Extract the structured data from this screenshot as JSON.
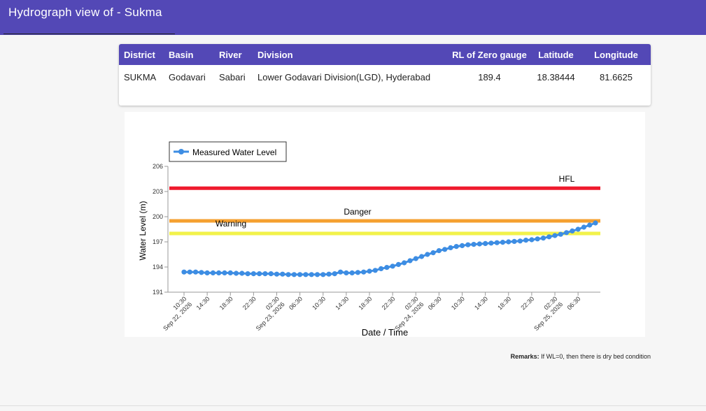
{
  "header": {
    "title": "Hydrograph view of - Sukma"
  },
  "station_table": {
    "columns": [
      "District",
      "Basin",
      "River",
      "Division",
      "RL of Zero gauge",
      "Latitude",
      "Longitude"
    ],
    "row": [
      "SUKMA",
      "Godavari",
      "Sabari",
      "Lower Godavari Division(LGD), Hyderabad",
      "189.4",
      "18.38444",
      "81.6625"
    ]
  },
  "remarks": {
    "label": "Remarks:",
    "text": "If WL=0, then there is dry bed condition"
  },
  "colors": {
    "header_bg": "#5348b6",
    "series": "#3d8de3",
    "hfl": "#ef1a2d",
    "danger": "#f5a030",
    "warning": "#f2f24a"
  },
  "chart_data": {
    "type": "line",
    "xlabel": "Date / Time",
    "ylabel": "Water Level (m)",
    "ylim": [
      191,
      206
    ],
    "yticks": [
      191,
      194,
      197,
      200,
      203,
      206
    ],
    "legend": "top-left",
    "grid": false,
    "x_tick_labels": [
      [
        "10:30",
        "Sep 22, 2026"
      ],
      [
        "14:30"
      ],
      [
        "18:30"
      ],
      [
        "22:30"
      ],
      [
        "02:30",
        "Sep 23, 2026"
      ],
      [
        "06:30"
      ],
      [
        "10:30"
      ],
      [
        "14:30"
      ],
      [
        "18:30"
      ],
      [
        "22:30"
      ],
      [
        "02:30",
        "Sep 24, 2026"
      ],
      [
        "06:30"
      ],
      [
        "10:30"
      ],
      [
        "14:30"
      ],
      [
        "18:30"
      ],
      [
        "22:30"
      ],
      [
        "02:30",
        "Sep 25, 2026"
      ],
      [
        "06:30"
      ]
    ],
    "thresholds": [
      {
        "name": "HFL",
        "value": 203.4
      },
      {
        "name": "Danger",
        "value": 199.5
      },
      {
        "name": "Warning",
        "value": 198.0
      }
    ],
    "series": [
      {
        "name": "Measured Water Level",
        "x_hours": [
          0,
          1,
          2,
          3,
          4,
          5,
          6,
          7,
          8,
          9,
          10,
          11,
          12,
          13,
          14,
          15,
          16,
          17,
          18,
          19,
          20,
          21,
          22,
          23,
          24,
          25,
          26,
          27,
          28,
          29,
          30,
          31,
          32,
          33,
          34,
          35,
          36,
          37,
          38,
          39,
          40,
          41,
          42,
          43,
          44,
          45,
          46,
          47,
          48,
          49,
          50,
          51,
          52,
          53,
          54,
          55,
          56,
          57,
          58,
          59,
          60,
          61,
          62,
          63,
          64,
          65,
          66,
          67,
          68,
          69,
          70,
          71
        ],
        "values": [
          193.4,
          193.4,
          193.4,
          193.35,
          193.3,
          193.3,
          193.3,
          193.3,
          193.3,
          193.25,
          193.25,
          193.2,
          193.2,
          193.2,
          193.2,
          193.2,
          193.15,
          193.15,
          193.1,
          193.1,
          193.1,
          193.1,
          193.1,
          193.1,
          193.1,
          193.15,
          193.2,
          193.4,
          193.3,
          193.3,
          193.35,
          193.4,
          193.5,
          193.6,
          193.8,
          193.95,
          194.1,
          194.3,
          194.5,
          194.75,
          195.0,
          195.25,
          195.5,
          195.7,
          195.95,
          196.1,
          196.3,
          196.45,
          196.55,
          196.65,
          196.7,
          196.75,
          196.8,
          196.85,
          196.9,
          196.95,
          197.0,
          197.05,
          197.1,
          197.2,
          197.25,
          197.35,
          197.45,
          197.6,
          197.75,
          197.9,
          198.1,
          198.3,
          198.5,
          198.75,
          199.0,
          199.25
        ]
      }
    ]
  }
}
